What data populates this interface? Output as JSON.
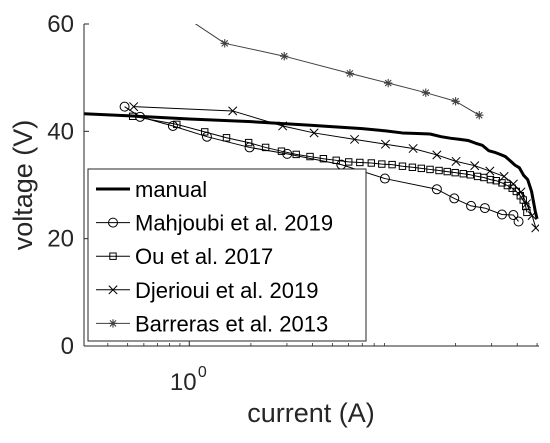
{
  "chart_data": {
    "type": "line",
    "xlabel": "current (A)",
    "ylabel": "voltage (V)",
    "x_scale": "log",
    "xlim": [
      0.306,
      51.1
    ],
    "ylim": [
      0,
      60
    ],
    "x_ticks": [
      {
        "value": 1,
        "base": "10",
        "exponent": "0"
      }
    ],
    "y_ticks": [
      "0",
      "20",
      "40",
      "60"
    ],
    "grid": false,
    "legend_position": "bottom-left",
    "series": [
      {
        "name": "manual",
        "marker": "none",
        "style": "thick",
        "color": "#000000",
        "x": [
          0.3,
          0.5,
          1.0,
          2.0,
          4.0,
          7.0,
          9.0,
          11.0,
          13.0,
          15.0,
          17.0,
          19.0,
          21.0,
          23.0,
          25.0,
          27.0,
          29.0,
          31.0,
          33.0,
          35.0,
          37.0,
          39.0,
          41.0,
          43.0,
          45.0,
          47.0,
          49.0,
          50.0
        ],
        "y": [
          43.3,
          42.9,
          42.3,
          41.8,
          41.1,
          40.5,
          40.1,
          39.7,
          39.6,
          39.5,
          39.0,
          38.7,
          38.5,
          38.3,
          37.8,
          37.4,
          36.4,
          36.1,
          35.7,
          35.3,
          34.5,
          33.7,
          33.2,
          31.8,
          31.0,
          28.8,
          25.1,
          23.7
        ]
      },
      {
        "name": "Mahjoubi et al. 2019",
        "marker": "circle",
        "color": "#000000",
        "x": [
          0.483,
          0.575,
          0.832,
          1.22,
          1.97,
          3.01,
          5.53,
          9.03,
          16.2,
          19.7,
          23.8,
          27.8,
          33.7,
          38.3,
          40.6
        ],
        "y": [
          44.6,
          42.7,
          41.0,
          39.0,
          37.0,
          35.8,
          33.8,
          31.2,
          29.2,
          27.5,
          26.1,
          25.7,
          24.5,
          24.4,
          23.2
        ]
      },
      {
        "name": "Ou et al. 2017",
        "marker": "square",
        "color": "#000000",
        "x": [
          0.529,
          0.869,
          1.19,
          1.52,
          1.95,
          2.36,
          2.82,
          3.33,
          3.89,
          4.52,
          5.22,
          6.01,
          6.81,
          7.75,
          8.72,
          9.79,
          11.0,
          12.3,
          13.6,
          15.0,
          16.6,
          18.2,
          19.9,
          21.8,
          23.6,
          25.6,
          27.5,
          29.6,
          31.6,
          33.7,
          35.8,
          37.8,
          39.6,
          41.4,
          42.8,
          44.0,
          44.6
        ],
        "y": [
          42.8,
          41.3,
          39.9,
          38.8,
          37.9,
          37.0,
          36.3,
          35.7,
          35.3,
          34.9,
          34.6,
          34.3,
          34.2,
          34.1,
          33.9,
          33.8,
          33.5,
          33.3,
          33.1,
          32.9,
          32.7,
          32.5,
          32.3,
          32.1,
          31.9,
          31.6,
          31.4,
          31.0,
          30.8,
          30.4,
          29.9,
          29.4,
          28.8,
          28.0,
          27.2,
          26.0,
          24.9
        ]
      },
      {
        "name": "Djerioui et al. 2019",
        "marker": "x",
        "color": "#000000",
        "x": [
          0.535,
          1.63,
          2.86,
          4.07,
          6.42,
          9.09,
          12.4,
          16.2,
          20.1,
          24.8,
          29.4,
          34.5,
          38.3,
          41.7,
          44.4,
          47.3,
          49.3
        ],
        "y": [
          44.6,
          43.8,
          41.0,
          39.7,
          38.5,
          37.6,
          36.8,
          35.6,
          34.4,
          33.6,
          32.6,
          31.6,
          30.2,
          28.7,
          26.5,
          24.3,
          22.0
        ]
      },
      {
        "name": "Barreras et al. 2013",
        "marker": "asterisk",
        "color": "#404040",
        "x": [
          1.49,
          2.91,
          6.09,
          9.37,
          14.3,
          20.0,
          26.1
        ],
        "y": [
          56.4,
          54.0,
          50.8,
          49.0,
          47.2,
          45.6,
          43.0
        ],
        "lead_in": {
          "x": [
            0.75,
            1.0,
            1.49
          ],
          "y": [
            64.0,
            60.8,
            56.4
          ]
        }
      }
    ]
  }
}
